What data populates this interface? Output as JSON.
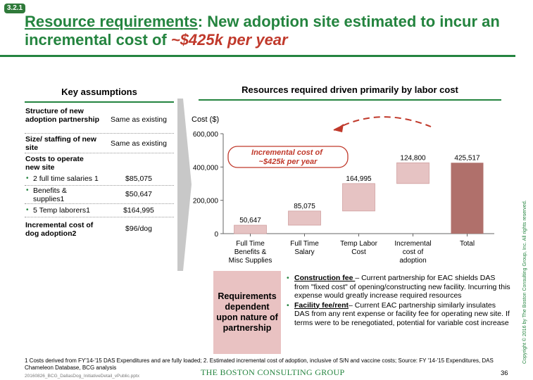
{
  "badge": "3.2.1",
  "title": {
    "part1": "Resource requirements",
    "part2": ": New adoption site estimated to incur an incremental cost of ",
    "accent": "~$425k per year"
  },
  "key_assumptions": {
    "heading": "Key assumptions",
    "rows": [
      {
        "label": "Structure of new adoption partnership",
        "value": "Same as existing"
      },
      {
        "label": "Size/ staffing of new site",
        "value": "Same as existing"
      },
      {
        "label": "Costs to operate new site",
        "value": ""
      },
      {
        "label": "2 full time salaries 1",
        "value": "$85,075"
      },
      {
        "label": "Benefits & supplies1",
        "value": "$50,647"
      },
      {
        "label": "5 Temp laborers1",
        "value": "$164,995"
      },
      {
        "label": "Incremental cost of dog adoption2",
        "value": "$96/dog"
      }
    ]
  },
  "resources": {
    "heading": "Resources required driven primarily by labor cost",
    "callout": "Incremental cost of ~$425k per year"
  },
  "chart_data": {
    "type": "bar",
    "subtype": "waterfall",
    "ylabel": "Cost ($)",
    "ylim": [
      0,
      600000
    ],
    "yticks": [
      "0",
      "200,000",
      "400,000",
      "600,000"
    ],
    "categories": [
      "Full Time Benefits & Misc Supplies",
      "Full Time Salary",
      "Temp Labor Cost",
      "Incremental cost of adoption",
      "Total"
    ],
    "values": [
      50647,
      85075,
      164995,
      124800,
      425517
    ],
    "labels": [
      "50,647",
      "85,075",
      "164,995",
      "124,800",
      "425,517"
    ],
    "bar_color": "#e6c3c3",
    "total_color": "#b0706b"
  },
  "requirements": {
    "box": "Requirements dependent upon nature of partnership",
    "bullets": [
      {
        "label": "Construction fee ",
        "text": "– Current partnership for EAC shields DAS from \"fixed cost\" of opening/constructing new facility. Incurring this expense would greatly increase required resources"
      },
      {
        "label": "Facility fee/rent",
        "text": "– Current EAC partnership similarly insulates DAS from any rent expense or facility fee for operating new site. If terms were to be renegotiated, potential for variable cost increase"
      }
    ]
  },
  "footnote": "1 Costs derived from FY'14-'15 DAS Expenditures and are fully loaded; 2. Estimated incremental cost of adoption, inclusive of S/N and vaccine costs; Source: FY '14-'15 Expenditures, DAS Chameleon Database, BCG analysis",
  "filename": "20160826_BCG_DallasDog_InitiativeDetail_vPublic.pptx",
  "logo": "THE BOSTON CONSULTING GROUP",
  "page_number": "36",
  "copyright": "Copyright © 2016 by The Boston Consulting Group, Inc. All rights reserved."
}
